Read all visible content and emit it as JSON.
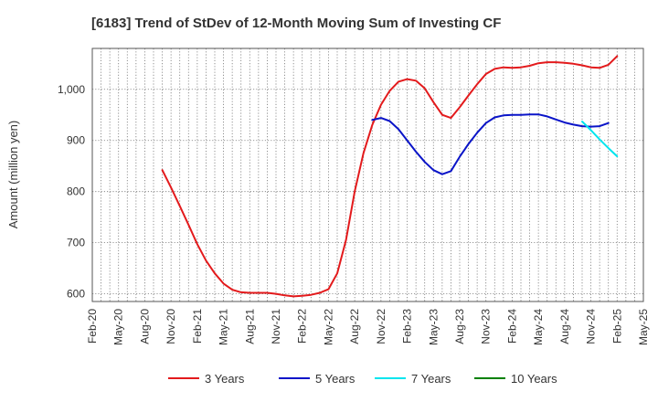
{
  "chart_data": {
    "type": "line",
    "title": "[6183]  Trend of StDev of 12-Month Moving Sum of Investing CF",
    "xlabel": "",
    "ylabel": "Amount (million yen)",
    "x_ticks": [
      "Feb-20",
      "May-20",
      "Aug-20",
      "Nov-20",
      "Feb-21",
      "May-21",
      "Aug-21",
      "Nov-21",
      "Feb-22",
      "May-22",
      "Aug-22",
      "Nov-22",
      "Feb-23",
      "May-23",
      "Aug-23",
      "Nov-23",
      "Feb-24",
      "May-24",
      "Aug-24",
      "Nov-24",
      "Feb-25",
      "May-25"
    ],
    "y_ticks": [
      600,
      700,
      800,
      900,
      1000
    ],
    "y_tick_labels": [
      "600",
      "700",
      "800",
      "900",
      "1,000"
    ],
    "ylim": [
      585,
      1080
    ],
    "grid": true,
    "legend_position": "bottom",
    "series": [
      {
        "name": "3 Years",
        "color": "#e31a1c",
        "start": "Oct-20",
        "values": [
          842,
          808,
          772,
          735,
          697,
          665,
          640,
          620,
          608,
          603,
          602,
          602,
          602,
          600,
          597,
          595,
          596,
          598,
          602,
          609,
          640,
          705,
          800,
          875,
          930,
          970,
          997,
          1015,
          1020,
          1017,
          1002,
          975,
          950,
          944,
          965,
          988,
          1010,
          1030,
          1040,
          1043,
          1042,
          1043,
          1046,
          1051,
          1053,
          1053,
          1052,
          1050,
          1047,
          1043,
          1042,
          1048,
          1065
        ]
      },
      {
        "name": "5 Years",
        "color": "#0a14c8",
        "start": "Oct-22",
        "values": [
          940,
          944,
          938,
          922,
          900,
          878,
          858,
          842,
          834,
          840,
          868,
          893,
          915,
          934,
          945,
          949,
          950,
          950,
          951,
          951,
          947,
          941,
          935,
          931,
          928,
          927,
          928,
          934
        ]
      },
      {
        "name": "7 Years",
        "color": "#00e5ee",
        "start": "Oct-24",
        "values": [
          937,
          920,
          902,
          885,
          869
        ]
      },
      {
        "name": "10 Years",
        "color": "#008000",
        "start": "",
        "values": []
      }
    ]
  }
}
